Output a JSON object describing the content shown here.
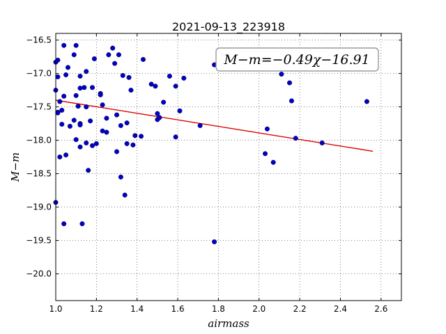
{
  "chart_data": {
    "type": "scatter",
    "title": "2021-09-13_223918",
    "xlabel": "airmass",
    "ylabel": "M−m",
    "xlim": [
      1.0,
      2.7
    ],
    "ylim": [
      -20.4,
      -16.4
    ],
    "y_inverted": true,
    "grid": true,
    "x_ticks": [
      1.0,
      1.2,
      1.4,
      1.6,
      1.8,
      2.0,
      2.2,
      2.4,
      2.6
    ],
    "x_tick_labels": [
      "1.0",
      "1.2",
      "1.4",
      "1.6",
      "1.8",
      "2.0",
      "2.2",
      "2.4",
      "2.6"
    ],
    "y_ticks": [
      -16.5,
      -17.0,
      -17.5,
      -18.0,
      -18.5,
      -19.0,
      -19.5,
      -20.0
    ],
    "y_tick_labels": [
      "−16.5",
      "−17.0",
      "−17.5",
      "−18.0",
      "−18.5",
      "−19.0",
      "−19.5",
      "−20.0"
    ],
    "annotation": "M−m=−0.49χ−16.91",
    "fit_line": {
      "slope": -0.49,
      "intercept": -16.91,
      "x_range": [
        1.0,
        2.56
      ],
      "color": "#dd0000"
    },
    "point_color": "#0000cc",
    "points": [
      [
        1.0,
        -16.83
      ],
      [
        1.01,
        -16.8
      ],
      [
        1.01,
        -17.05
      ],
      [
        1.0,
        -17.25
      ],
      [
        1.01,
        -17.58
      ],
      [
        1.01,
        -17.59
      ],
      [
        1.02,
        -17.42
      ],
      [
        1.03,
        -17.55
      ],
      [
        1.03,
        -17.76
      ],
      [
        1.04,
        -17.34
      ],
      [
        1.04,
        -16.58
      ],
      [
        1.05,
        -17.02
      ],
      [
        1.05,
        -18.22
      ],
      [
        1.02,
        -18.25
      ],
      [
        1.0,
        -18.93
      ],
      [
        1.04,
        -19.25
      ],
      [
        1.06,
        -16.91
      ],
      [
        1.07,
        -17.79
      ],
      [
        1.09,
        -16.72
      ],
      [
        1.1,
        -16.58
      ],
      [
        1.1,
        -17.33
      ],
      [
        1.09,
        -17.7
      ],
      [
        1.1,
        -17.99
      ],
      [
        1.11,
        -17.49
      ],
      [
        1.12,
        -17.22
      ],
      [
        1.12,
        -17.75
      ],
      [
        1.12,
        -17.77
      ],
      [
        1.12,
        -18.1
      ],
      [
        1.12,
        -17.04
      ],
      [
        1.14,
        -17.21
      ],
      [
        1.15,
        -17.5
      ],
      [
        1.15,
        -16.97
      ],
      [
        1.15,
        -18.04
      ],
      [
        1.16,
        -18.45
      ],
      [
        1.17,
        -17.71
      ],
      [
        1.18,
        -17.21
      ],
      [
        1.18,
        -18.08
      ],
      [
        1.19,
        -16.78
      ],
      [
        1.2,
        -18.05
      ],
      [
        1.22,
        -17.3
      ],
      [
        1.22,
        -17.32
      ],
      [
        1.23,
        -17.86
      ],
      [
        1.23,
        -17.47
      ],
      [
        1.25,
        -17.88
      ],
      [
        1.25,
        -17.67
      ],
      [
        1.26,
        -16.72
      ],
      [
        1.28,
        -16.62
      ],
      [
        1.29,
        -16.85
      ],
      [
        1.3,
        -17.62
      ],
      [
        1.3,
        -18.17
      ],
      [
        1.31,
        -16.72
      ],
      [
        1.32,
        -17.78
      ],
      [
        1.32,
        -18.55
      ],
      [
        1.33,
        -17.03
      ],
      [
        1.34,
        -18.82
      ],
      [
        1.35,
        -17.74
      ],
      [
        1.35,
        -18.05
      ],
      [
        1.36,
        -17.06
      ],
      [
        1.37,
        -17.25
      ],
      [
        1.38,
        -18.07
      ],
      [
        1.39,
        -17.93
      ],
      [
        1.42,
        -17.94
      ],
      [
        1.43,
        -16.79
      ],
      [
        1.47,
        -17.16
      ],
      [
        1.49,
        -17.19
      ],
      [
        1.5,
        -17.6
      ],
      [
        1.5,
        -17.69
      ],
      [
        1.51,
        -17.66
      ],
      [
        1.53,
        -17.43
      ],
      [
        1.56,
        -17.04
      ],
      [
        1.59,
        -17.19
      ],
      [
        1.59,
        -17.95
      ],
      [
        1.61,
        -17.56
      ],
      [
        1.63,
        -17.07
      ],
      [
        1.71,
        -17.78
      ],
      [
        1.78,
        -19.52
      ],
      [
        1.78,
        -16.87
      ],
      [
        2.03,
        -18.2
      ],
      [
        2.04,
        -17.83
      ],
      [
        2.07,
        -18.33
      ],
      [
        2.11,
        -17.01
      ],
      [
        2.15,
        -17.14
      ],
      [
        2.16,
        -17.41
      ],
      [
        2.18,
        -17.97
      ],
      [
        2.31,
        -18.04
      ],
      [
        2.53,
        -17.42
      ],
      [
        1.13,
        -19.25
      ]
    ]
  }
}
